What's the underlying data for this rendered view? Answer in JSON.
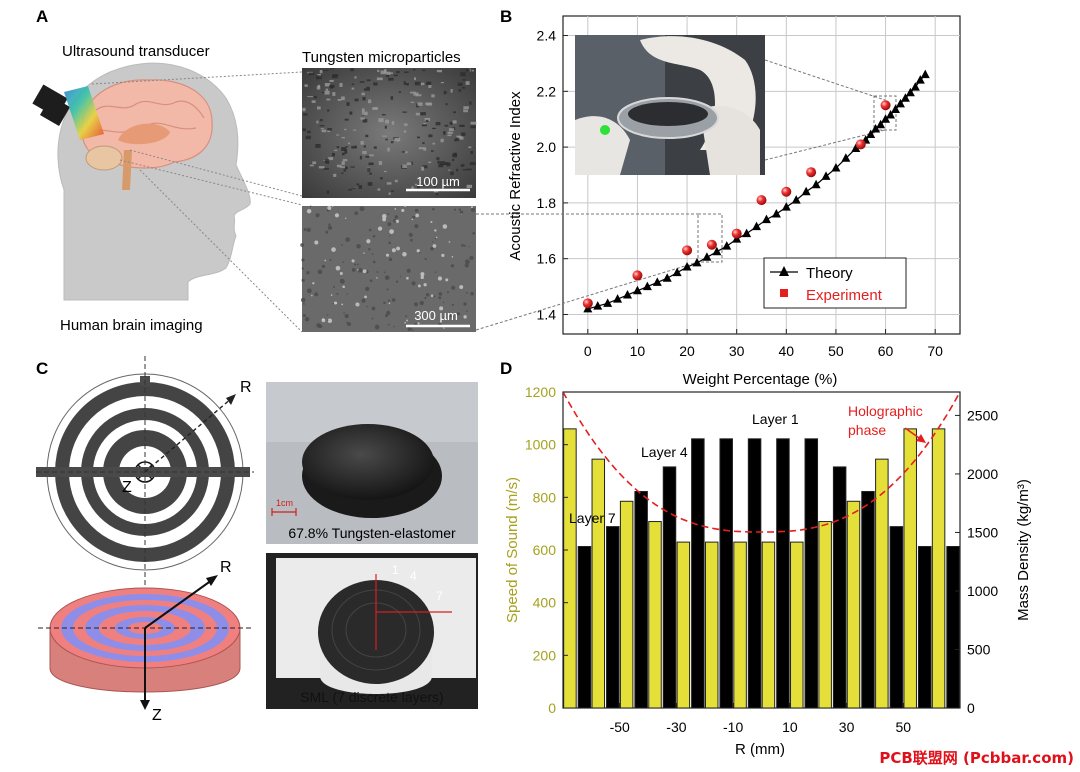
{
  "panels": {
    "a": {
      "letter": "A",
      "transducer_label": "Ultrasound transducer",
      "particles_label": "Tungsten microparticles",
      "brain_label": "Human brain imaging",
      "scale_top": "100 µm",
      "scale_bottom": "300 µm"
    },
    "b": {
      "letter": "B"
    },
    "c": {
      "letter": "C",
      "axis_r_top": "R",
      "axis_z_top": "Z",
      "axis_r_bottom": "R",
      "axis_z_bottom": "Z",
      "scale_bar": "1cm",
      "photo_top_caption": "67.8% Tungsten-elastomer",
      "photo_bottom_caption": "SML (7 discrete layers)",
      "layer_marks": [
        "1",
        "4",
        "7"
      ]
    },
    "d": {
      "letter": "D"
    }
  },
  "chart_data": [
    {
      "type": "scatter",
      "xlabel": "Weight Percentage (%)",
      "ylabel": "Acoustic Refractive Index",
      "xlim": [
        -5,
        75
      ],
      "ylim": [
        1.33,
        2.47
      ],
      "xticks": [
        0,
        10,
        20,
        30,
        40,
        50,
        60,
        70
      ],
      "yticks": [
        1.4,
        1.6,
        1.8,
        2.0,
        2.2,
        2.4
      ],
      "grid": true,
      "legend_position": "bottom-right",
      "series": [
        {
          "name": "Theory",
          "marker": "triangle",
          "color": "#000000",
          "x": [
            0,
            2,
            4,
            6,
            8,
            10,
            12,
            14,
            16,
            18,
            20,
            22,
            24,
            26,
            28,
            30,
            32,
            34,
            36,
            38,
            40,
            42,
            44,
            46,
            48,
            50,
            52,
            54,
            56,
            57,
            58,
            59,
            60,
            61,
            62,
            63,
            64,
            65,
            66,
            67,
            68
          ],
          "y": [
            1.42,
            1.43,
            1.44,
            1.455,
            1.47,
            1.485,
            1.5,
            1.515,
            1.53,
            1.55,
            1.57,
            1.585,
            1.605,
            1.625,
            1.645,
            1.67,
            1.69,
            1.715,
            1.74,
            1.76,
            1.785,
            1.81,
            1.84,
            1.865,
            1.895,
            1.925,
            1.96,
            1.995,
            2.025,
            2.045,
            2.065,
            2.08,
            2.1,
            2.115,
            2.135,
            2.155,
            2.175,
            2.195,
            2.215,
            2.24,
            2.26
          ]
        },
        {
          "name": "Experiment",
          "marker": "sphere",
          "color": "#e41f1f",
          "x": [
            0,
            10,
            20,
            25,
            30,
            35,
            40,
            45,
            55,
            60
          ],
          "y": [
            1.44,
            1.54,
            1.63,
            1.65,
            1.69,
            1.81,
            1.84,
            1.91,
            2.01,
            2.15
          ]
        }
      ]
    },
    {
      "type": "bar",
      "xlabel": "R (mm)",
      "ylabel": "Speed of Sound (m/s)",
      "ylabel_right": "Mass Density (kg/m³)",
      "categories": [
        -65,
        -55,
        -45,
        -35,
        -25,
        -15,
        -5,
        5,
        15,
        25,
        35,
        45,
        55,
        65
      ],
      "xticks": [
        -50,
        -30,
        -10,
        10,
        30,
        50
      ],
      "ylim": [
        0,
        1200
      ],
      "yticks": [
        0,
        200,
        400,
        600,
        800,
        1000,
        1200
      ],
      "ylim_right": [
        0,
        2700
      ],
      "yticks_right": [
        0,
        500,
        1000,
        1500,
        2000,
        2500
      ],
      "series": [
        {
          "axis": "left",
          "color": "#e5df3a",
          "values": [
            1060,
            945,
            785,
            708,
            630,
            630,
            630,
            630,
            630,
            708,
            785,
            945,
            1060,
            1060
          ]
        },
        {
          "axis": "right",
          "color": "#000000",
          "values": [
            1380,
            1550,
            1850,
            2060,
            2300,
            2300,
            2300,
            2300,
            2300,
            2060,
            1850,
            1550,
            1380,
            1380
          ]
        }
      ],
      "phase_curve_color": "#e41f1f",
      "annotations": [
        "Layer 1",
        "Layer 4",
        "Layer 7",
        "Holographic phase"
      ]
    }
  ],
  "watermark": "PCB联盟网 (Pcbbar.com)"
}
